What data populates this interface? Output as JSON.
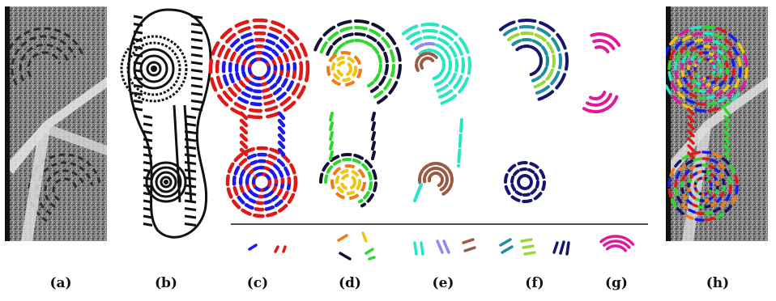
{
  "captions": [
    "(a)",
    "(b)",
    "(c)",
    "(d)",
    "(e)",
    "(f)",
    "(g)",
    "(h)"
  ],
  "colors": {
    "red": "#e01818",
    "blue": "#1a1aee",
    "green": "#2bd82b",
    "black": "#111133",
    "orange": "#f07a1a",
    "yellow": "#f2c40c",
    "teal": "#27e6c4",
    "brown": "#9a5a44",
    "lavender": "#8c8cf0",
    "navy": "#16166e",
    "darkteal": "#1f8fa0",
    "lime": "#9ad83a",
    "magenta": "#e0189e"
  },
  "panels": [
    {
      "id": "a",
      "kind": "photo"
    },
    {
      "id": "b",
      "kind": "shoeprint"
    },
    {
      "id": "c",
      "kind": "segments",
      "palette": [
        "red",
        "blue"
      ]
    },
    {
      "id": "d",
      "kind": "segments",
      "palette": [
        "green",
        "black",
        "orange",
        "yellow"
      ]
    },
    {
      "id": "e",
      "kind": "segments",
      "palette": [
        "teal",
        "brown",
        "lavender"
      ]
    },
    {
      "id": "f",
      "kind": "segments",
      "palette": [
        "navy",
        "darkteal",
        "lime"
      ]
    },
    {
      "id": "g",
      "kind": "segments",
      "palette": [
        "magenta"
      ]
    },
    {
      "id": "h",
      "kind": "overlay"
    }
  ]
}
